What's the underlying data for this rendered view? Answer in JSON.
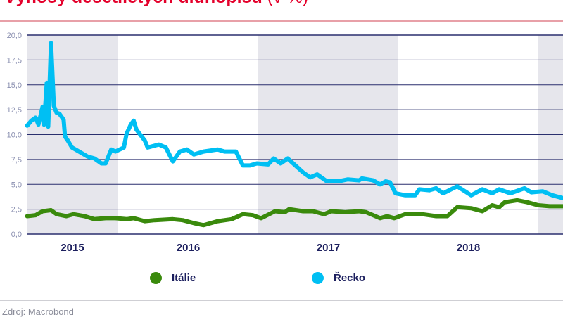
{
  "chart_data": {
    "type": "line",
    "title": "Výnosy desetiletých dluhopisů",
    "title_unit": "(v %)",
    "xlabel": "",
    "ylabel": "",
    "x_unit": "year (decimal)",
    "xlim": [
      2015.35,
      2019.18
    ],
    "ylim": [
      0,
      20
    ],
    "y_ticks": [
      "0,0",
      "2,5",
      "5,0",
      "7,5",
      "10,0",
      "12,5",
      "15,0",
      "17,5",
      "20,0"
    ],
    "y_tick_values": [
      0,
      2.5,
      5,
      7.5,
      10,
      12.5,
      15,
      17.5,
      20
    ],
    "x_tick_labels": [
      "2015",
      "2016",
      "2017",
      "2018"
    ],
    "shaded_years": [
      2015,
      2017,
      2019
    ],
    "grid": true,
    "legend_position": "bottom",
    "series": [
      {
        "name": "Itálie",
        "color": "#3a8a0c",
        "points": [
          [
            2015.35,
            1.8
          ],
          [
            2015.41,
            1.9
          ],
          [
            2015.46,
            2.3
          ],
          [
            2015.52,
            2.4
          ],
          [
            2015.56,
            2.0
          ],
          [
            2015.63,
            1.8
          ],
          [
            2015.68,
            2.0
          ],
          [
            2015.76,
            1.8
          ],
          [
            2015.83,
            1.5
          ],
          [
            2015.91,
            1.6
          ],
          [
            2015.98,
            1.6
          ],
          [
            2016.06,
            1.5
          ],
          [
            2016.11,
            1.6
          ],
          [
            2016.19,
            1.3
          ],
          [
            2016.26,
            1.4
          ],
          [
            2016.39,
            1.5
          ],
          [
            2016.46,
            1.4
          ],
          [
            2016.54,
            1.1
          ],
          [
            2016.61,
            0.9
          ],
          [
            2016.71,
            1.3
          ],
          [
            2016.81,
            1.5
          ],
          [
            2016.89,
            2.0
          ],
          [
            2016.96,
            1.9
          ],
          [
            2017.02,
            1.6
          ],
          [
            2017.12,
            2.3
          ],
          [
            2017.19,
            2.2
          ],
          [
            2017.22,
            2.5
          ],
          [
            2017.32,
            2.3
          ],
          [
            2017.39,
            2.3
          ],
          [
            2017.47,
            2.0
          ],
          [
            2017.52,
            2.3
          ],
          [
            2017.62,
            2.2
          ],
          [
            2017.72,
            2.3
          ],
          [
            2017.77,
            2.2
          ],
          [
            2017.87,
            1.6
          ],
          [
            2017.92,
            1.8
          ],
          [
            2017.97,
            1.6
          ],
          [
            2018.05,
            2.0
          ],
          [
            2018.17,
            2.0
          ],
          [
            2018.27,
            1.8
          ],
          [
            2018.35,
            1.8
          ],
          [
            2018.42,
            2.7
          ],
          [
            2018.52,
            2.6
          ],
          [
            2018.6,
            2.3
          ],
          [
            2018.67,
            2.9
          ],
          [
            2018.72,
            2.7
          ],
          [
            2018.76,
            3.2
          ],
          [
            2018.85,
            3.4
          ],
          [
            2018.92,
            3.2
          ],
          [
            2019.0,
            2.9
          ],
          [
            2019.08,
            2.8
          ],
          [
            2019.13,
            2.8
          ],
          [
            2019.18,
            2.8
          ]
        ]
      },
      {
        "name": "Řecko",
        "color": "#00bff3",
        "points": [
          [
            2015.35,
            10.9
          ],
          [
            2015.38,
            11.4
          ],
          [
            2015.41,
            11.7
          ],
          [
            2015.43,
            11.0
          ],
          [
            2015.46,
            12.8
          ],
          [
            2015.47,
            11.0
          ],
          [
            2015.49,
            15.2
          ],
          [
            2015.5,
            10.8
          ],
          [
            2015.52,
            19.2
          ],
          [
            2015.54,
            12.9
          ],
          [
            2015.56,
            12.2
          ],
          [
            2015.58,
            12.1
          ],
          [
            2015.61,
            11.5
          ],
          [
            2015.62,
            9.8
          ],
          [
            2015.64,
            9.4
          ],
          [
            2015.67,
            8.7
          ],
          [
            2015.72,
            8.3
          ],
          [
            2015.78,
            7.8
          ],
          [
            2015.83,
            7.6
          ],
          [
            2015.88,
            7.1
          ],
          [
            2015.91,
            7.1
          ],
          [
            2015.95,
            8.5
          ],
          [
            2015.98,
            8.3
          ],
          [
            2016.04,
            8.7
          ],
          [
            2016.06,
            10.1
          ],
          [
            2016.09,
            11.0
          ],
          [
            2016.11,
            11.4
          ],
          [
            2016.13,
            10.5
          ],
          [
            2016.19,
            9.4
          ],
          [
            2016.21,
            8.7
          ],
          [
            2016.29,
            9.0
          ],
          [
            2016.34,
            8.7
          ],
          [
            2016.39,
            7.3
          ],
          [
            2016.44,
            8.3
          ],
          [
            2016.49,
            8.5
          ],
          [
            2016.54,
            8.0
          ],
          [
            2016.61,
            8.3
          ],
          [
            2016.71,
            8.5
          ],
          [
            2016.76,
            8.3
          ],
          [
            2016.84,
            8.3
          ],
          [
            2016.89,
            6.9
          ],
          [
            2016.94,
            6.9
          ],
          [
            2016.99,
            7.1
          ],
          [
            2017.07,
            7.0
          ],
          [
            2017.11,
            7.6
          ],
          [
            2017.16,
            7.1
          ],
          [
            2017.21,
            7.6
          ],
          [
            2017.32,
            6.2
          ],
          [
            2017.37,
            5.7
          ],
          [
            2017.42,
            6.0
          ],
          [
            2017.49,
            5.3
          ],
          [
            2017.57,
            5.3
          ],
          [
            2017.64,
            5.5
          ],
          [
            2017.72,
            5.4
          ],
          [
            2017.74,
            5.6
          ],
          [
            2017.82,
            5.4
          ],
          [
            2017.87,
            5.0
          ],
          [
            2017.91,
            5.3
          ],
          [
            2017.94,
            5.2
          ],
          [
            2017.98,
            4.1
          ],
          [
            2018.05,
            3.9
          ],
          [
            2018.12,
            3.9
          ],
          [
            2018.15,
            4.5
          ],
          [
            2018.22,
            4.4
          ],
          [
            2018.27,
            4.6
          ],
          [
            2018.32,
            4.1
          ],
          [
            2018.42,
            4.8
          ],
          [
            2018.52,
            3.9
          ],
          [
            2018.6,
            4.5
          ],
          [
            2018.67,
            4.1
          ],
          [
            2018.72,
            4.5
          ],
          [
            2018.8,
            4.1
          ],
          [
            2018.9,
            4.6
          ],
          [
            2018.95,
            4.2
          ],
          [
            2019.03,
            4.3
          ],
          [
            2019.1,
            3.9
          ],
          [
            2019.18,
            3.6
          ]
        ]
      }
    ],
    "source": "Zdroj: Macrobond"
  },
  "colors": {
    "title": "#e4002b",
    "grid": "#2a2f6e",
    "shade": "#e6e6ec",
    "tick_label": "#8a8fb0",
    "year_label": "#1c1f5e"
  }
}
